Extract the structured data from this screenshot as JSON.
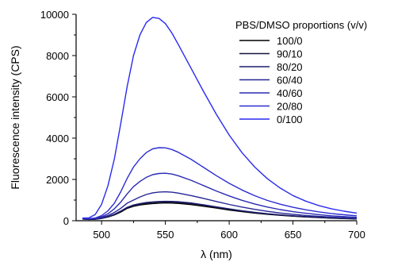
{
  "chart_data": {
    "type": "line",
    "xlabel": "λ (nm)",
    "ylabel": "Fluorescence intensity (CPS)",
    "xlim": [
      480,
      700
    ],
    "ylim": [
      0,
      10000
    ],
    "xticks": [
      500,
      550,
      600,
      650,
      700
    ],
    "yticks": [
      0,
      2000,
      4000,
      6000,
      8000,
      10000
    ],
    "grid": false,
    "legend": {
      "title": "PBS/DMSO proportions (v/v)",
      "placement": "top-right"
    },
    "x": [
      485,
      490,
      495,
      500,
      505,
      510,
      515,
      520,
      525,
      530,
      535,
      540,
      545,
      550,
      555,
      560,
      570,
      580,
      590,
      600,
      610,
      620,
      630,
      640,
      650,
      660,
      670,
      680,
      690,
      700
    ],
    "series": [
      {
        "name": "100/0",
        "color": "#000000",
        "values": [
          80,
          60,
          70,
          110,
          180,
          280,
          420,
          600,
          700,
          760,
          800,
          830,
          850,
          860,
          855,
          840,
          780,
          700,
          610,
          520,
          440,
          370,
          310,
          260,
          220,
          180,
          150,
          125,
          105,
          85
        ]
      },
      {
        "name": "90/10",
        "color": "#14143c",
        "values": [
          85,
          65,
          75,
          115,
          190,
          300,
          450,
          630,
          730,
          800,
          850,
          880,
          900,
          910,
          905,
          890,
          830,
          745,
          650,
          555,
          470,
          395,
          330,
          275,
          230,
          190,
          160,
          130,
          110,
          90
        ]
      },
      {
        "name": "80/20",
        "color": "#1e1e6e",
        "values": [
          90,
          70,
          80,
          120,
          200,
          310,
          470,
          650,
          760,
          830,
          880,
          910,
          930,
          940,
          935,
          920,
          860,
          770,
          670,
          575,
          485,
          405,
          340,
          285,
          240,
          200,
          165,
          135,
          115,
          95
        ]
      },
      {
        "name": "60/40",
        "color": "#262696",
        "values": [
          100,
          80,
          95,
          150,
          250,
          400,
          600,
          850,
          1000,
          1150,
          1270,
          1350,
          1390,
          1400,
          1380,
          1340,
          1220,
          1080,
          930,
          790,
          660,
          550,
          455,
          375,
          310,
          255,
          210,
          175,
          145,
          120
        ]
      },
      {
        "name": "40/60",
        "color": "#2a2ab4",
        "values": [
          110,
          90,
          110,
          190,
          340,
          580,
          900,
          1300,
          1650,
          1900,
          2100,
          2230,
          2290,
          2300,
          2260,
          2180,
          1960,
          1700,
          1440,
          1200,
          990,
          810,
          660,
          540,
          440,
          360,
          295,
          240,
          200,
          165
        ]
      },
      {
        "name": "20/80",
        "color": "#2c2cd2",
        "values": [
          120,
          100,
          130,
          250,
          480,
          850,
          1400,
          2050,
          2600,
          3000,
          3300,
          3480,
          3540,
          3530,
          3450,
          3320,
          2980,
          2580,
          2180,
          1810,
          1490,
          1210,
          980,
          800,
          650,
          530,
          430,
          350,
          290,
          240
        ]
      },
      {
        "name": "0/100",
        "color": "#2a2af0",
        "values": [
          130,
          140,
          300,
          800,
          1700,
          3000,
          4700,
          6500,
          8000,
          9000,
          9600,
          9850,
          9800,
          9550,
          9100,
          8550,
          7400,
          6250,
          5150,
          4150,
          3300,
          2600,
          2030,
          1580,
          1220,
          950,
          740,
          580,
          460,
          370
        ]
      }
    ]
  }
}
